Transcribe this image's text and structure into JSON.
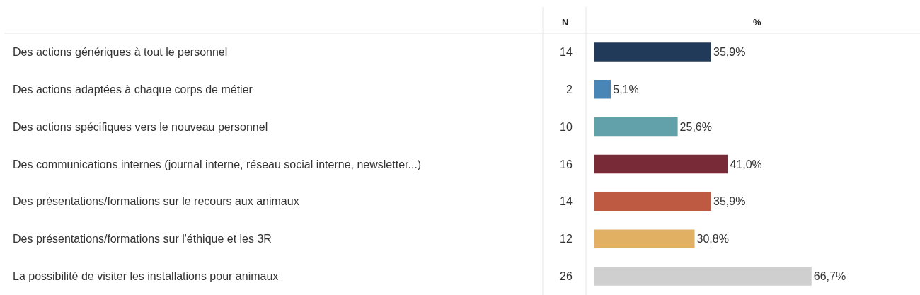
{
  "chart_data": {
    "type": "bar",
    "orientation": "horizontal",
    "xlabel": "%",
    "categories": [
      "Des actions génériques à tout le personnel",
      "Des actions adaptées à chaque corps de métier",
      "Des actions spécifiques vers le nouveau personnel",
      "Des communications internes (journal interne, réseau social interne, newsletter...)",
      "Des présentations/formations sur le recours aux animaux",
      "Des présentations/formations sur l'éthique et les 3R",
      "La possibilité de visiter les installations pour animaux"
    ],
    "values": [
      35.9,
      5.1,
      25.6,
      41.0,
      35.9,
      30.8,
      66.7
    ],
    "colors": [
      "#213a5a",
      "#4a86b5",
      "#62a0aa",
      "#782a36",
      "#bf5a42",
      "#e2b062",
      "#cfcfcf"
    ],
    "value_labels": [
      "35,9%",
      "5,1%",
      "25,6%",
      "41,0%",
      "35,9%",
      "30,8%",
      "66,7%"
    ],
    "xlim": [
      0,
      100
    ],
    "tick_labels": "y",
    "grid": false,
    "legend": false,
    "annotations": [
      "N",
      "14",
      "2",
      "10",
      "16",
      "14",
      "12",
      "26"
    ]
  }
}
